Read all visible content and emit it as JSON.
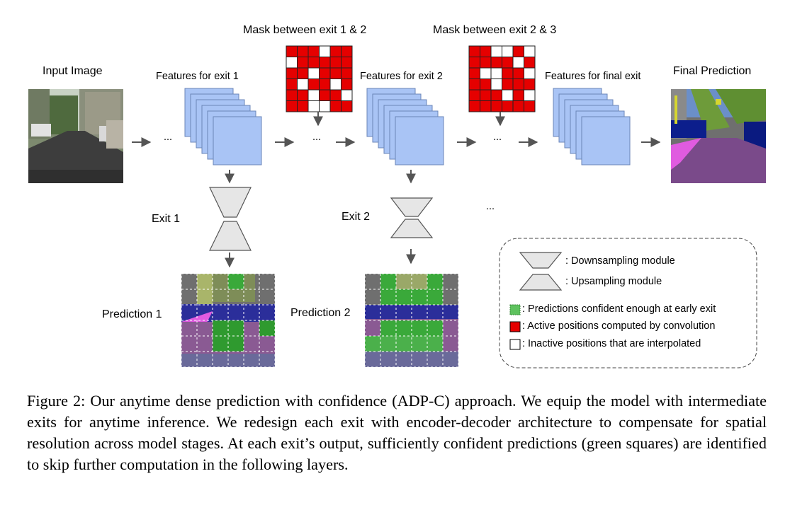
{
  "labels": {
    "input_image": "Input Image",
    "features_exit1": "Features for exit 1",
    "features_exit2": "Features for exit 2",
    "features_final": "Features for final exit",
    "final_prediction": "Final Prediction",
    "mask_1_2": "Mask between exit 1 & 2",
    "mask_2_3": "Mask between exit 2 & 3",
    "exit1": "Exit 1",
    "exit2": "Exit 2",
    "prediction1": "Prediction 1",
    "prediction2": "Prediction 2",
    "dots": "..."
  },
  "legend": {
    "downsampling": ": Downsampling module",
    "upsampling": ": Upsampling module",
    "confident": ": Predictions confident enough at early exit",
    "active": ": Active positions computed by convolution",
    "inactive": ": Inactive positions that are interpolated"
  },
  "masks": {
    "mask_1_2": [
      [
        1,
        1,
        1,
        0,
        1,
        1
      ],
      [
        0,
        1,
        1,
        1,
        1,
        1
      ],
      [
        1,
        1,
        0,
        1,
        1,
        1
      ],
      [
        1,
        0,
        1,
        1,
        0,
        1
      ],
      [
        1,
        1,
        0,
        1,
        1,
        0
      ],
      [
        1,
        1,
        0,
        0,
        1,
        1
      ]
    ],
    "mask_2_3": [
      [
        1,
        1,
        0,
        0,
        1,
        0
      ],
      [
        1,
        1,
        1,
        1,
        0,
        1
      ],
      [
        1,
        0,
        0,
        1,
        1,
        0
      ],
      [
        1,
        1,
        0,
        1,
        1,
        1
      ],
      [
        1,
        1,
        1,
        0,
        1,
        0
      ],
      [
        1,
        1,
        1,
        1,
        1,
        1
      ]
    ]
  },
  "colors": {
    "feature_fill": "#a9c4f5",
    "feature_stroke": "#6b86b8",
    "mask_active": "#e50000",
    "mask_inactive": "#ffffff",
    "module_fill": "#e6e6e6",
    "confident_green": "#5ec25e",
    "arrow": "#555555"
  },
  "caption": "Figure 2: Our anytime dense prediction with confidence (ADP-C) approach. We equip the model with intermediate exits for anytime inference. We redesign each exit with encoder-decoder architecture to compensate for spatial resolution across model stages. At each exit’s output, sufficiently confident predictions (green squares) are identified to skip further computation in the following layers."
}
